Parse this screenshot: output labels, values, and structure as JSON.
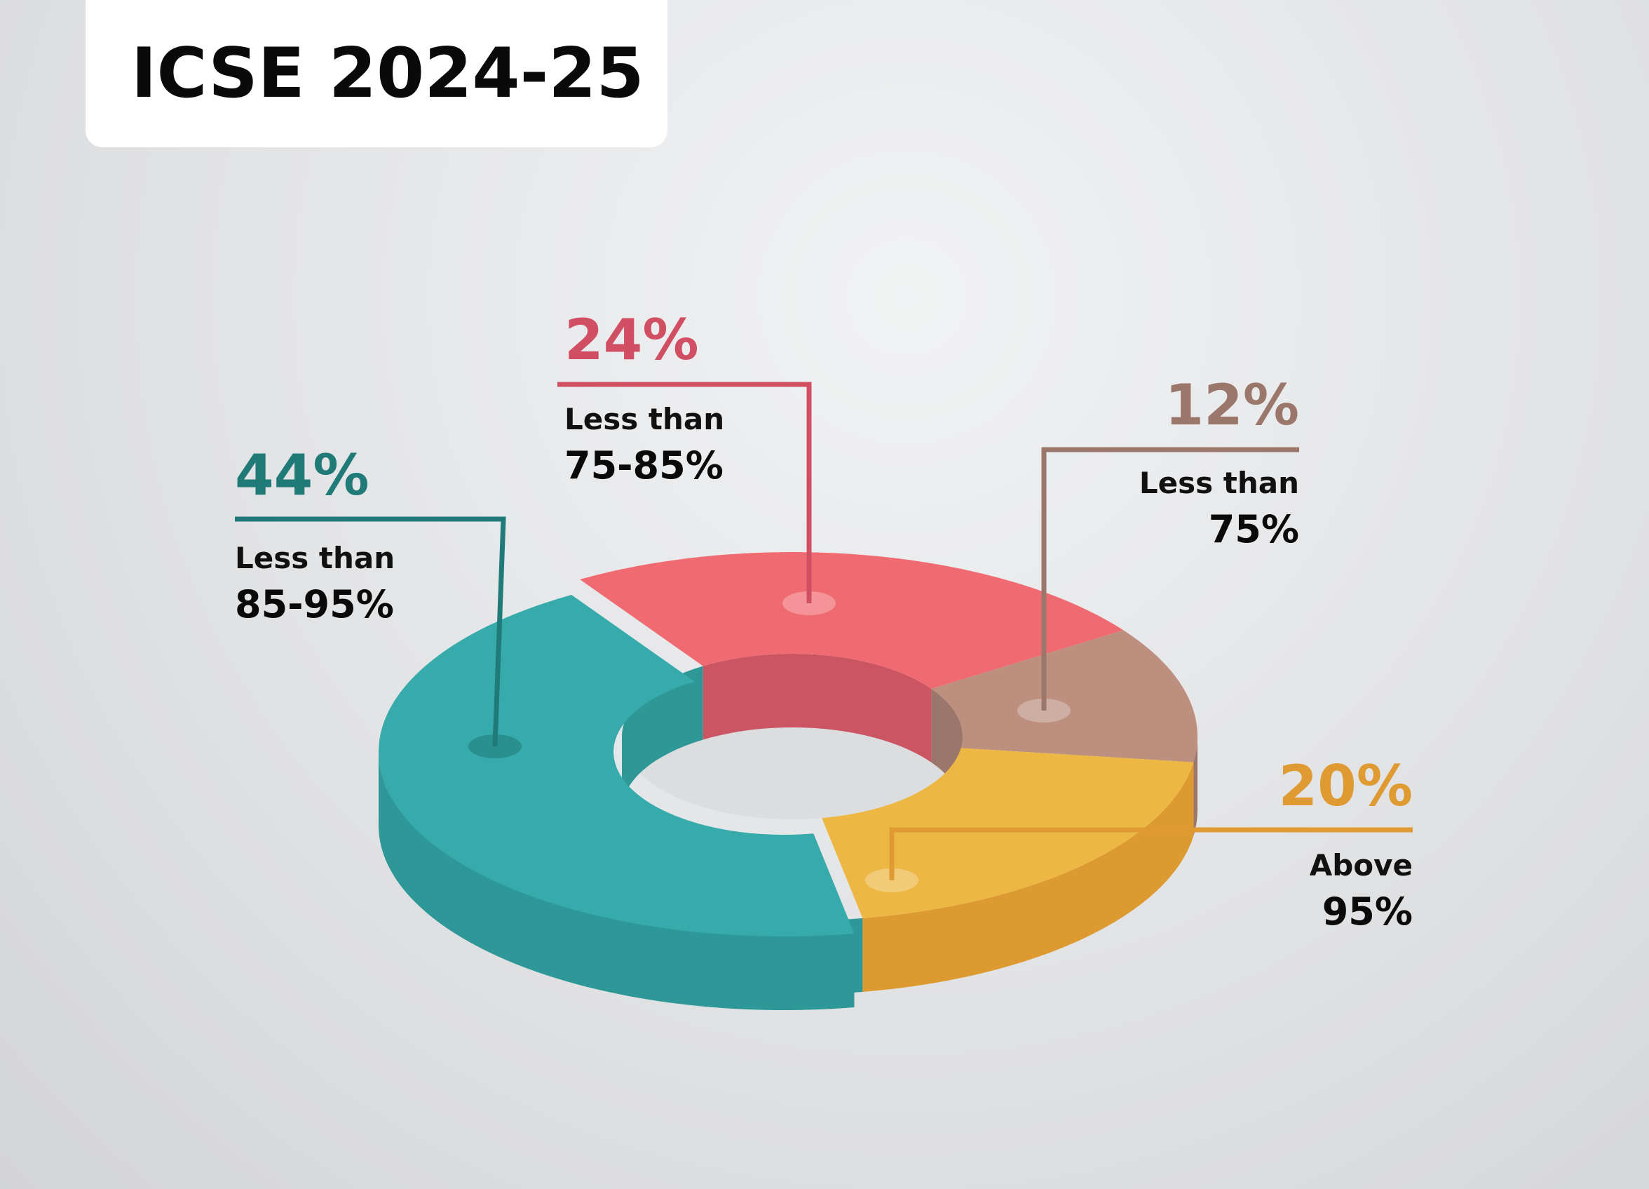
{
  "title": "ICSE 2024-25",
  "chart_data": {
    "type": "pie",
    "title": "ICSE 2024-25",
    "slices": [
      {
        "value": 44,
        "percent_label": "44%",
        "label_line1": "Less than",
        "label_line2": "85-95%",
        "color": "#37aaab",
        "side_color": "#2d9897",
        "inner_color": "#2e9896",
        "dark_color": "#1f7a78"
      },
      {
        "value": 24,
        "percent_label": "24%",
        "label_line1": "Less than",
        "label_line2": "75-85%",
        "color": "#f06b71",
        "side_color": "#cc5563",
        "inner_color": "#cc5563",
        "dark_color": "#d14f62"
      },
      {
        "value": 12,
        "percent_label": "12%",
        "label_line1": "Less than",
        "label_line2": "75%",
        "color": "#bc8f7f",
        "side_color": "#9b776b",
        "inner_color": "#9b776b",
        "dark_color": "#9b776b"
      },
      {
        "value": 20,
        "percent_label": "20%",
        "label_line1": "Above",
        "label_line2": "95%",
        "color": "#ecb843",
        "side_color": "#dd9a30",
        "inner_color": "#dd9a30",
        "dark_color": "#e09a32"
      }
    ]
  }
}
